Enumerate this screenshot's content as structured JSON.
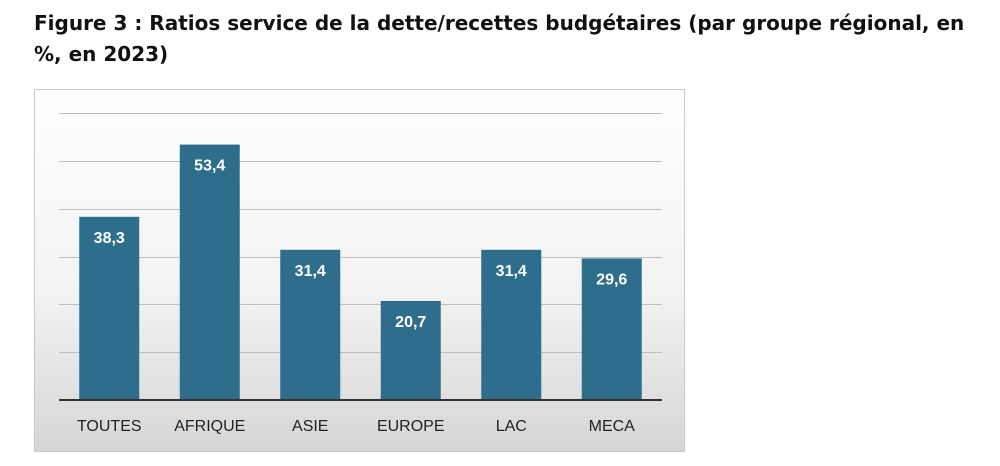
{
  "title": "Figure 3 : Ratios service de la dette/recettes budgétaires (par groupe régional, en %, en 2023)",
  "chart_data": {
    "type": "bar",
    "title": "Figure 3 : Ratios service de la dette/recettes budgétaires (par groupe régional, en %, en 2023)",
    "categories": [
      "TOUTES",
      "AFRIQUE",
      "ASIE",
      "EUROPE",
      "LAC",
      "MECA"
    ],
    "values": [
      38.3,
      53.4,
      31.4,
      20.7,
      31.4,
      29.6
    ],
    "value_labels": [
      "38,3",
      "53,4",
      "31,4",
      "20,7",
      "31,4",
      "29,6"
    ],
    "xlabel": "",
    "ylabel": "",
    "ylim": [
      0,
      60
    ],
    "grid": true,
    "bar_color": "#2e6e8c",
    "axis_color": "#333333",
    "grid_color": "#bdbdbd"
  }
}
